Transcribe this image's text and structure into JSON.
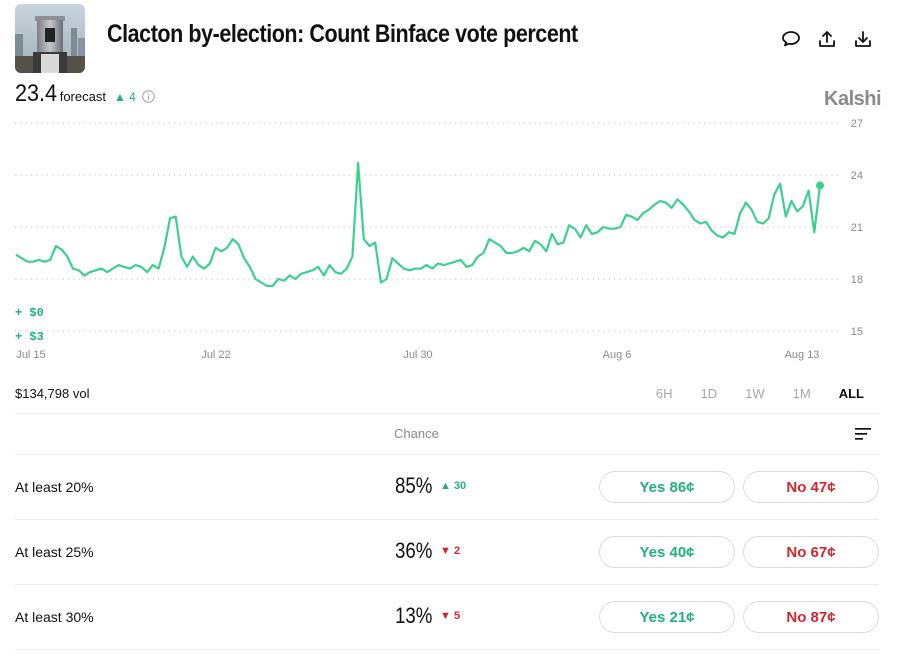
{
  "header": {
    "title": "Clacton by-election: Count Binface vote percent"
  },
  "forecast": {
    "value": "23.4",
    "label": "forecast",
    "change": "▲ 4"
  },
  "brand": "Kalshi",
  "colors": {
    "green": "#22b07d",
    "red": "#d3262c",
    "line": "#3cd08f"
  },
  "chart_data": {
    "type": "line",
    "y_ticks": [
      "27",
      "24",
      "21",
      "18",
      "15"
    ],
    "ylim": [
      15,
      27
    ],
    "x_ticks": [
      "Jul 15",
      "Jul 22",
      "Jul 30",
      "Aug 6",
      "Aug 13"
    ],
    "series": [
      {
        "values": [
          19.4,
          19.2,
          19.0,
          19.0,
          19.1,
          19.0,
          19.1,
          19.9,
          19.7,
          19.3,
          18.6,
          18.5,
          18.2,
          18.4,
          18.5,
          18.6,
          18.4,
          18.6,
          18.8,
          18.7,
          18.6,
          18.8,
          18.7,
          18.4,
          18.8,
          18.6,
          19.8,
          21.5,
          21.6,
          19.3,
          18.7,
          19.3,
          18.8,
          18.6,
          18.9,
          19.8,
          19.6,
          19.8,
          20.3,
          20.0,
          19.2,
          18.7,
          18.0,
          17.8,
          17.6,
          17.6,
          18.0,
          17.9,
          18.2,
          18.0,
          18.3,
          18.4,
          18.5,
          18.7,
          18.2,
          18.8,
          18.4,
          18.3,
          18.6,
          19.3,
          24.7,
          20.3,
          19.9,
          20.1,
          17.8,
          18.0,
          19.2,
          18.9,
          18.6,
          18.5,
          18.6,
          18.6,
          18.8,
          18.6,
          18.9,
          18.8,
          18.9,
          19.0,
          19.1,
          18.7,
          18.8,
          19.3,
          19.5,
          20.3,
          20.1,
          19.9,
          19.5,
          19.5,
          19.6,
          19.8,
          19.6,
          20.2,
          20.0,
          19.6,
          20.6,
          20.0,
          20.1,
          21.1,
          20.9,
          20.4,
          21.1,
          20.6,
          20.7,
          21.0,
          20.9,
          20.9,
          21.0,
          21.7,
          21.6,
          21.4,
          21.8,
          22.0,
          22.3,
          22.5,
          22.4,
          22.1,
          22.6,
          22.3,
          21.9,
          21.4,
          21.2,
          21.3,
          20.8,
          20.5,
          20.4,
          20.7,
          20.6,
          21.8,
          22.4,
          22.0,
          21.3,
          21.2,
          21.5,
          22.9,
          23.5,
          21.6,
          22.5,
          21.9,
          22.2,
          23.1,
          20.7,
          23.4
        ]
      }
    ]
  },
  "money": {
    "line1": "+ $0",
    "line2": "+ $3"
  },
  "volume": "$134,798 vol",
  "timeframes": [
    "6H",
    "1D",
    "1W",
    "1M",
    "ALL"
  ],
  "table": {
    "chance_header": "Chance",
    "rows": [
      {
        "label": "At least 20%",
        "pct": "85%",
        "delta": "▲ 30",
        "direction": "up",
        "yes": "Yes 86¢",
        "no": "No 47¢"
      },
      {
        "label": "At least 25%",
        "pct": "36%",
        "delta": "▼ 2",
        "direction": "down",
        "yes": "Yes 40¢",
        "no": "No 67¢"
      },
      {
        "label": "At least 30%",
        "pct": "13%",
        "delta": "▼ 5",
        "direction": "down",
        "yes": "Yes 21¢",
        "no": "No 87¢"
      }
    ]
  }
}
